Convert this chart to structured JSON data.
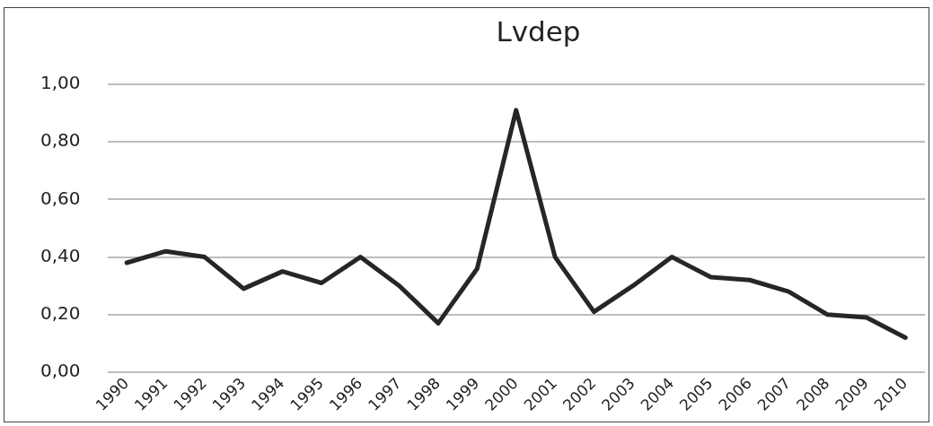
{
  "chart_data": {
    "type": "line",
    "title": "Lvdep",
    "categories": [
      "1990",
      "1991",
      "1992",
      "1993",
      "1994",
      "1995",
      "1996",
      "1997",
      "1998",
      "1999",
      "2000",
      "2001",
      "2002",
      "2003",
      "2004",
      "2005",
      "2006",
      "2007",
      "2008",
      "2009",
      "2010"
    ],
    "series": [
      {
        "color": "#262626",
        "values": [
          0.38,
          0.42,
          0.4,
          0.29,
          0.35,
          0.31,
          0.4,
          0.3,
          0.17,
          0.36,
          0.91,
          0.4,
          0.21,
          0.3,
          0.4,
          0.33,
          0.32,
          0.28,
          0.2,
          0.19,
          0.12
        ]
      }
    ],
    "ylim": [
      0,
      1
    ],
    "yticks": [
      {
        "value": 0,
        "label": "0,00"
      },
      {
        "value": 0.2,
        "label": "0,20"
      },
      {
        "value": 0.4,
        "label": "0,40"
      },
      {
        "value": 0.6,
        "label": "0,60"
      },
      {
        "value": 0.8,
        "label": "0,80"
      },
      {
        "value": 1,
        "label": "1,00"
      }
    ],
    "grid": "y",
    "legend": false,
    "marker": "none",
    "line_style": "solid"
  }
}
